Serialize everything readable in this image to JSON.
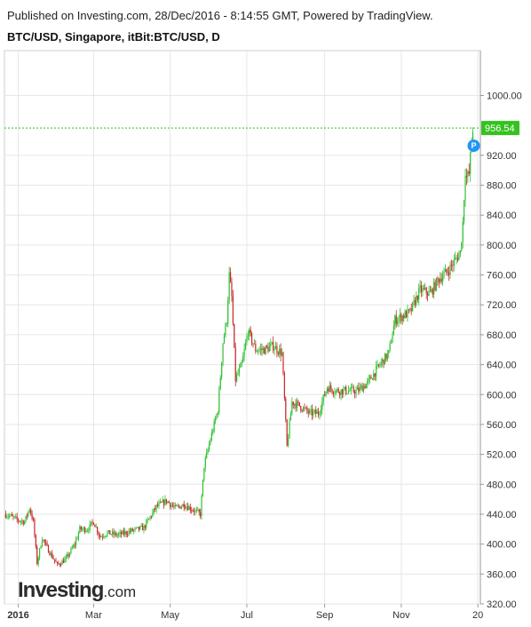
{
  "header": {
    "published": "Published on Investing.com, 28/Dec/2016 - 8:14:55 GMT, Powered by TradingView.",
    "symbol": "BTC/USD, Singapore, itBit:BTC/USD, D"
  },
  "logo": {
    "name": "Investing",
    "suffix": ".com"
  },
  "colors": {
    "up": "#2fbf2f",
    "down": "#c62828",
    "grid": "#e6e6e6",
    "last_price_line": "#2fbf2f",
    "last_price_label_bg": "#35c21f",
    "event_marker": "#2196f3"
  },
  "event_marker_label": "P",
  "chart_data": {
    "type": "candlestick",
    "y_range": [
      320,
      1060
    ],
    "y_ticks": [
      "320.00",
      "360.00",
      "400.00",
      "440.00",
      "480.00",
      "520.00",
      "560.00",
      "600.00",
      "640.00",
      "680.00",
      "720.00",
      "760.00",
      "800.00",
      "840.00",
      "880.00",
      "920.00",
      "1000.00"
    ],
    "y_tick_values": [
      320,
      360,
      400,
      440,
      480,
      520,
      560,
      600,
      640,
      680,
      720,
      760,
      800,
      840,
      880,
      920,
      1000
    ],
    "last_price": 956.54,
    "last_price_label": "956.54",
    "x_labels": [
      "2016",
      "Mar",
      "May",
      "Jul",
      "Sep",
      "Nov",
      "20"
    ],
    "x_label_dates": [
      "2016-01-01",
      "2016-03-01",
      "2016-05-01",
      "2016-07-01",
      "2016-09-01",
      "2016-11-01",
      "2017-01-01"
    ],
    "x_range": [
      "2015-12-21",
      "2017-01-03"
    ],
    "series": [
      {
        "date": "2015-12-22",
        "close": 440
      },
      {
        "date": "2016-01-01",
        "close": 432
      },
      {
        "date": "2016-01-06",
        "close": 430
      },
      {
        "date": "2016-01-10",
        "close": 448
      },
      {
        "date": "2016-01-13",
        "close": 430
      },
      {
        "date": "2016-01-16",
        "close": 375
      },
      {
        "date": "2016-01-20",
        "close": 408
      },
      {
        "date": "2016-01-25",
        "close": 392
      },
      {
        "date": "2016-02-01",
        "close": 372
      },
      {
        "date": "2016-02-08",
        "close": 380
      },
      {
        "date": "2016-02-15",
        "close": 400
      },
      {
        "date": "2016-02-19",
        "close": 420
      },
      {
        "date": "2016-02-25",
        "close": 420
      },
      {
        "date": "2016-03-01",
        "close": 430
      },
      {
        "date": "2016-03-06",
        "close": 410
      },
      {
        "date": "2016-03-12",
        "close": 415
      },
      {
        "date": "2016-03-20",
        "close": 412
      },
      {
        "date": "2016-04-01",
        "close": 418
      },
      {
        "date": "2016-04-10",
        "close": 422
      },
      {
        "date": "2016-04-20",
        "close": 450
      },
      {
        "date": "2016-04-28",
        "close": 458
      },
      {
        "date": "2016-05-05",
        "close": 448
      },
      {
        "date": "2016-05-12",
        "close": 453
      },
      {
        "date": "2016-05-20",
        "close": 445
      },
      {
        "date": "2016-05-25",
        "close": 440
      },
      {
        "date": "2016-05-28",
        "close": 505
      },
      {
        "date": "2016-06-02",
        "close": 540
      },
      {
        "date": "2016-06-08",
        "close": 580
      },
      {
        "date": "2016-06-12",
        "close": 670
      },
      {
        "date": "2016-06-15",
        "close": 700
      },
      {
        "date": "2016-06-17",
        "close": 760
      },
      {
        "date": "2016-06-19",
        "close": 730
      },
      {
        "date": "2016-06-22",
        "close": 620
      },
      {
        "date": "2016-06-27",
        "close": 640
      },
      {
        "date": "2016-07-02",
        "close": 685
      },
      {
        "date": "2016-07-08",
        "close": 660
      },
      {
        "date": "2016-07-15",
        "close": 660
      },
      {
        "date": "2016-07-22",
        "close": 665
      },
      {
        "date": "2016-07-29",
        "close": 655
      },
      {
        "date": "2016-08-02",
        "close": 530
      },
      {
        "date": "2016-08-06",
        "close": 590
      },
      {
        "date": "2016-08-12",
        "close": 585
      },
      {
        "date": "2016-08-20",
        "close": 575
      },
      {
        "date": "2016-08-27",
        "close": 575
      },
      {
        "date": "2016-09-03",
        "close": 610
      },
      {
        "date": "2016-09-10",
        "close": 605
      },
      {
        "date": "2016-09-18",
        "close": 605
      },
      {
        "date": "2016-09-27",
        "close": 605
      },
      {
        "date": "2016-10-05",
        "close": 615
      },
      {
        "date": "2016-10-15",
        "close": 640
      },
      {
        "date": "2016-10-22",
        "close": 655
      },
      {
        "date": "2016-10-27",
        "close": 700
      },
      {
        "date": "2016-11-02",
        "close": 705
      },
      {
        "date": "2016-11-08",
        "close": 710
      },
      {
        "date": "2016-11-16",
        "close": 740
      },
      {
        "date": "2016-11-24",
        "close": 735
      },
      {
        "date": "2016-12-01",
        "close": 755
      },
      {
        "date": "2016-12-08",
        "close": 765
      },
      {
        "date": "2016-12-14",
        "close": 780
      },
      {
        "date": "2016-12-18",
        "close": 790
      },
      {
        "date": "2016-12-20",
        "close": 830
      },
      {
        "date": "2016-12-22",
        "close": 900
      },
      {
        "date": "2016-12-23",
        "close": 890
      },
      {
        "date": "2016-12-25",
        "close": 895
      },
      {
        "date": "2016-12-27",
        "close": 940
      },
      {
        "date": "2016-12-28",
        "close": 956.54
      }
    ]
  }
}
